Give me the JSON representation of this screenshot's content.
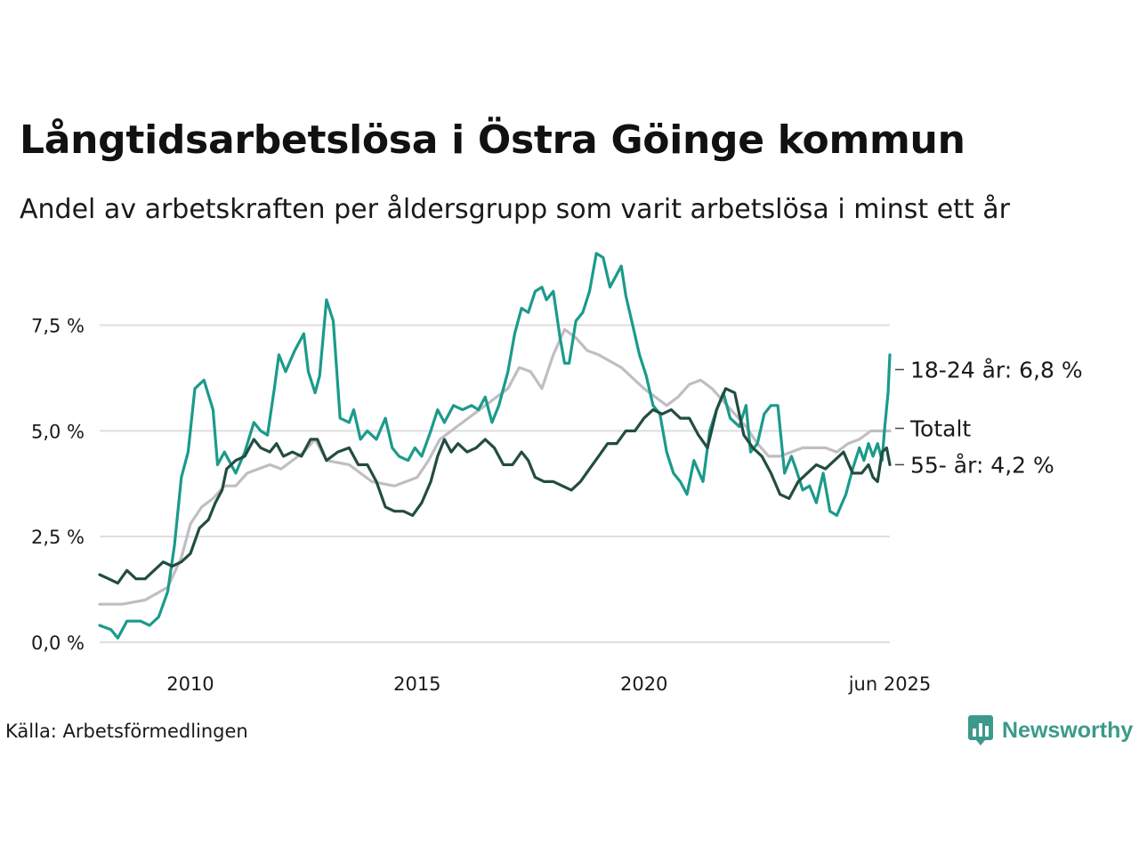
{
  "title": "Långtidsarbetslösa i Östra Göinge kommun",
  "subtitle": "Andel av arbetskraften per åldersgrupp som varit arbetslösa i minst ett år",
  "source": "Källa: Arbetsförmedlingen",
  "logo": {
    "text": "Newsworthy",
    "icon": "newsworthy-bar-chart-icon",
    "color": "#3b9a8a"
  },
  "chart_data": {
    "type": "line",
    "x_ticks": [
      {
        "label": "2010",
        "value": 2010.0
      },
      {
        "label": "2015",
        "value": 2015.0
      },
      {
        "label": "2020",
        "value": 2020.0
      },
      {
        "label": "jun 2025",
        "value": 2025.42
      }
    ],
    "y_ticks": [
      "0,0 %",
      "2,5 %",
      "5,0 %",
      "7,5 %"
    ],
    "y_tick_values": [
      0,
      2.5,
      5,
      7.5
    ],
    "xlim": [
      2008.0,
      2025.42
    ],
    "ylim": [
      0,
      9.3
    ],
    "grid": true,
    "series": [
      {
        "name": "Totalt",
        "end_label": "Totalt",
        "color": "#c0bec4",
        "points": [
          [
            2008.0,
            0.9
          ],
          [
            2008.5,
            0.9
          ],
          [
            2009.0,
            1.0
          ],
          [
            2009.5,
            1.3
          ],
          [
            2009.8,
            2.0
          ],
          [
            2010.0,
            2.8
          ],
          [
            2010.25,
            3.2
          ],
          [
            2010.5,
            3.4
          ],
          [
            2010.75,
            3.7
          ],
          [
            2011.0,
            3.7
          ],
          [
            2011.25,
            4.0
          ],
          [
            2011.5,
            4.1
          ],
          [
            2011.75,
            4.2
          ],
          [
            2012.0,
            4.1
          ],
          [
            2012.5,
            4.5
          ],
          [
            2012.75,
            4.8
          ],
          [
            2013.0,
            4.3
          ],
          [
            2013.5,
            4.2
          ],
          [
            2014.0,
            3.8
          ],
          [
            2014.5,
            3.7
          ],
          [
            2015.0,
            3.9
          ],
          [
            2015.25,
            4.3
          ],
          [
            2015.5,
            4.8
          ],
          [
            2016.0,
            5.2
          ],
          [
            2016.5,
            5.6
          ],
          [
            2017.0,
            6.0
          ],
          [
            2017.25,
            6.5
          ],
          [
            2017.5,
            6.4
          ],
          [
            2017.75,
            6.0
          ],
          [
            2018.0,
            6.8
          ],
          [
            2018.25,
            7.4
          ],
          [
            2018.5,
            7.2
          ],
          [
            2018.75,
            6.9
          ],
          [
            2019.0,
            6.8
          ],
          [
            2019.5,
            6.5
          ],
          [
            2020.0,
            6.0
          ],
          [
            2020.25,
            5.8
          ],
          [
            2020.5,
            5.6
          ],
          [
            2020.75,
            5.8
          ],
          [
            2021.0,
            6.1
          ],
          [
            2021.25,
            6.2
          ],
          [
            2021.5,
            6.0
          ],
          [
            2021.75,
            5.7
          ],
          [
            2022.0,
            5.4
          ],
          [
            2022.25,
            5.1
          ],
          [
            2022.5,
            4.7
          ],
          [
            2022.75,
            4.4
          ],
          [
            2023.0,
            4.4
          ],
          [
            2023.25,
            4.5
          ],
          [
            2023.5,
            4.6
          ],
          [
            2023.75,
            4.6
          ],
          [
            2024.0,
            4.6
          ],
          [
            2024.25,
            4.5
          ],
          [
            2024.5,
            4.7
          ],
          [
            2024.75,
            4.8
          ],
          [
            2025.0,
            5.0
          ],
          [
            2025.25,
            5.0
          ],
          [
            2025.42,
            5.0
          ]
        ]
      },
      {
        "name": "18-24 år",
        "end_label": "18-24 år: 6,8 %",
        "color": "#1b9a8b",
        "points": [
          [
            2008.0,
            0.4
          ],
          [
            2008.25,
            0.3
          ],
          [
            2008.4,
            0.1
          ],
          [
            2008.6,
            0.5
          ],
          [
            2008.9,
            0.5
          ],
          [
            2009.1,
            0.4
          ],
          [
            2009.3,
            0.6
          ],
          [
            2009.5,
            1.2
          ],
          [
            2009.65,
            2.3
          ],
          [
            2009.8,
            3.9
          ],
          [
            2009.95,
            4.5
          ],
          [
            2010.1,
            6.0
          ],
          [
            2010.3,
            6.2
          ],
          [
            2010.5,
            5.5
          ],
          [
            2010.6,
            4.2
          ],
          [
            2010.75,
            4.5
          ],
          [
            2011.0,
            4.0
          ],
          [
            2011.2,
            4.5
          ],
          [
            2011.4,
            5.2
          ],
          [
            2011.55,
            5.0
          ],
          [
            2011.7,
            4.9
          ],
          [
            2011.85,
            6.0
          ],
          [
            2011.95,
            6.8
          ],
          [
            2012.1,
            6.4
          ],
          [
            2012.3,
            6.9
          ],
          [
            2012.5,
            7.3
          ],
          [
            2012.6,
            6.4
          ],
          [
            2012.75,
            5.9
          ],
          [
            2012.85,
            6.3
          ],
          [
            2013.0,
            8.1
          ],
          [
            2013.15,
            7.6
          ],
          [
            2013.3,
            5.3
          ],
          [
            2013.5,
            5.2
          ],
          [
            2013.6,
            5.5
          ],
          [
            2013.75,
            4.8
          ],
          [
            2013.9,
            5.0
          ],
          [
            2014.1,
            4.8
          ],
          [
            2014.3,
            5.3
          ],
          [
            2014.45,
            4.6
          ],
          [
            2014.6,
            4.4
          ],
          [
            2014.8,
            4.3
          ],
          [
            2014.95,
            4.6
          ],
          [
            2015.1,
            4.4
          ],
          [
            2015.3,
            5.0
          ],
          [
            2015.45,
            5.5
          ],
          [
            2015.6,
            5.2
          ],
          [
            2015.8,
            5.6
          ],
          [
            2016.0,
            5.5
          ],
          [
            2016.2,
            5.6
          ],
          [
            2016.35,
            5.5
          ],
          [
            2016.5,
            5.8
          ],
          [
            2016.65,
            5.2
          ],
          [
            2016.8,
            5.6
          ],
          [
            2017.0,
            6.4
          ],
          [
            2017.15,
            7.3
          ],
          [
            2017.3,
            7.9
          ],
          [
            2017.45,
            7.8
          ],
          [
            2017.6,
            8.3
          ],
          [
            2017.75,
            8.4
          ],
          [
            2017.85,
            8.1
          ],
          [
            2018.0,
            8.3
          ],
          [
            2018.15,
            7.2
          ],
          [
            2018.25,
            6.6
          ],
          [
            2018.35,
            6.6
          ],
          [
            2018.5,
            7.6
          ],
          [
            2018.65,
            7.8
          ],
          [
            2018.8,
            8.3
          ],
          [
            2018.95,
            9.2
          ],
          [
            2019.1,
            9.1
          ],
          [
            2019.25,
            8.4
          ],
          [
            2019.4,
            8.7
          ],
          [
            2019.5,
            8.9
          ],
          [
            2019.6,
            8.2
          ],
          [
            2019.75,
            7.5
          ],
          [
            2019.9,
            6.8
          ],
          [
            2020.05,
            6.3
          ],
          [
            2020.2,
            5.6
          ],
          [
            2020.35,
            5.4
          ],
          [
            2020.5,
            4.5
          ],
          [
            2020.65,
            4.0
          ],
          [
            2020.8,
            3.8
          ],
          [
            2020.95,
            3.5
          ],
          [
            2021.1,
            4.3
          ],
          [
            2021.3,
            3.8
          ],
          [
            2021.45,
            5.0
          ],
          [
            2021.6,
            5.5
          ],
          [
            2021.75,
            5.9
          ],
          [
            2021.9,
            5.3
          ],
          [
            2022.1,
            5.1
          ],
          [
            2022.25,
            5.6
          ],
          [
            2022.35,
            4.5
          ],
          [
            2022.5,
            4.7
          ],
          [
            2022.65,
            5.4
          ],
          [
            2022.8,
            5.6
          ],
          [
            2022.95,
            5.6
          ],
          [
            2023.1,
            4.0
          ],
          [
            2023.25,
            4.4
          ],
          [
            2023.35,
            4.1
          ],
          [
            2023.5,
            3.6
          ],
          [
            2023.65,
            3.7
          ],
          [
            2023.8,
            3.3
          ],
          [
            2023.95,
            4.0
          ],
          [
            2024.1,
            3.1
          ],
          [
            2024.25,
            3.0
          ],
          [
            2024.45,
            3.5
          ],
          [
            2024.6,
            4.1
          ],
          [
            2024.75,
            4.6
          ],
          [
            2024.85,
            4.3
          ],
          [
            2024.95,
            4.7
          ],
          [
            2025.05,
            4.4
          ],
          [
            2025.15,
            4.7
          ],
          [
            2025.25,
            4.3
          ],
          [
            2025.3,
            5.0
          ],
          [
            2025.38,
            5.9
          ],
          [
            2025.42,
            6.8
          ]
        ]
      },
      {
        "name": "55- år",
        "end_label": "55- år: 4,2 %",
        "color": "#224d40",
        "points": [
          [
            2008.0,
            1.6
          ],
          [
            2008.2,
            1.5
          ],
          [
            2008.4,
            1.4
          ],
          [
            2008.6,
            1.7
          ],
          [
            2008.8,
            1.5
          ],
          [
            2009.0,
            1.5
          ],
          [
            2009.2,
            1.7
          ],
          [
            2009.4,
            1.9
          ],
          [
            2009.6,
            1.8
          ],
          [
            2009.8,
            1.9
          ],
          [
            2010.0,
            2.1
          ],
          [
            2010.2,
            2.7
          ],
          [
            2010.4,
            2.9
          ],
          [
            2010.55,
            3.3
          ],
          [
            2010.7,
            3.6
          ],
          [
            2010.8,
            4.1
          ],
          [
            2011.0,
            4.3
          ],
          [
            2011.2,
            4.4
          ],
          [
            2011.4,
            4.8
          ],
          [
            2011.55,
            4.6
          ],
          [
            2011.75,
            4.5
          ],
          [
            2011.9,
            4.7
          ],
          [
            2012.05,
            4.4
          ],
          [
            2012.25,
            4.5
          ],
          [
            2012.45,
            4.4
          ],
          [
            2012.65,
            4.8
          ],
          [
            2012.8,
            4.8
          ],
          [
            2013.0,
            4.3
          ],
          [
            2013.25,
            4.5
          ],
          [
            2013.5,
            4.6
          ],
          [
            2013.7,
            4.2
          ],
          [
            2013.9,
            4.2
          ],
          [
            2014.1,
            3.8
          ],
          [
            2014.3,
            3.2
          ],
          [
            2014.5,
            3.1
          ],
          [
            2014.7,
            3.1
          ],
          [
            2014.9,
            3.0
          ],
          [
            2015.1,
            3.3
          ],
          [
            2015.3,
            3.8
          ],
          [
            2015.45,
            4.4
          ],
          [
            2015.6,
            4.8
          ],
          [
            2015.75,
            4.5
          ],
          [
            2015.9,
            4.7
          ],
          [
            2016.1,
            4.5
          ],
          [
            2016.3,
            4.6
          ],
          [
            2016.5,
            4.8
          ],
          [
            2016.7,
            4.6
          ],
          [
            2016.9,
            4.2
          ],
          [
            2017.1,
            4.2
          ],
          [
            2017.3,
            4.5
          ],
          [
            2017.45,
            4.3
          ],
          [
            2017.6,
            3.9
          ],
          [
            2017.8,
            3.8
          ],
          [
            2018.0,
            3.8
          ],
          [
            2018.2,
            3.7
          ],
          [
            2018.4,
            3.6
          ],
          [
            2018.6,
            3.8
          ],
          [
            2018.8,
            4.1
          ],
          [
            2019.0,
            4.4
          ],
          [
            2019.2,
            4.7
          ],
          [
            2019.4,
            4.7
          ],
          [
            2019.6,
            5.0
          ],
          [
            2019.8,
            5.0
          ],
          [
            2020.0,
            5.3
          ],
          [
            2020.2,
            5.5
          ],
          [
            2020.4,
            5.4
          ],
          [
            2020.6,
            5.5
          ],
          [
            2020.8,
            5.3
          ],
          [
            2021.0,
            5.3
          ],
          [
            2021.2,
            4.9
          ],
          [
            2021.4,
            4.6
          ],
          [
            2021.6,
            5.5
          ],
          [
            2021.8,
            6.0
          ],
          [
            2022.0,
            5.9
          ],
          [
            2022.2,
            4.9
          ],
          [
            2022.4,
            4.6
          ],
          [
            2022.6,
            4.4
          ],
          [
            2022.8,
            4.0
          ],
          [
            2023.0,
            3.5
          ],
          [
            2023.2,
            3.4
          ],
          [
            2023.4,
            3.8
          ],
          [
            2023.6,
            4.0
          ],
          [
            2023.8,
            4.2
          ],
          [
            2024.0,
            4.1
          ],
          [
            2024.2,
            4.3
          ],
          [
            2024.4,
            4.5
          ],
          [
            2024.6,
            4.0
          ],
          [
            2024.8,
            4.0
          ],
          [
            2024.95,
            4.2
          ],
          [
            2025.05,
            3.9
          ],
          [
            2025.15,
            3.8
          ],
          [
            2025.25,
            4.5
          ],
          [
            2025.35,
            4.6
          ],
          [
            2025.42,
            4.2
          ]
        ]
      }
    ]
  }
}
